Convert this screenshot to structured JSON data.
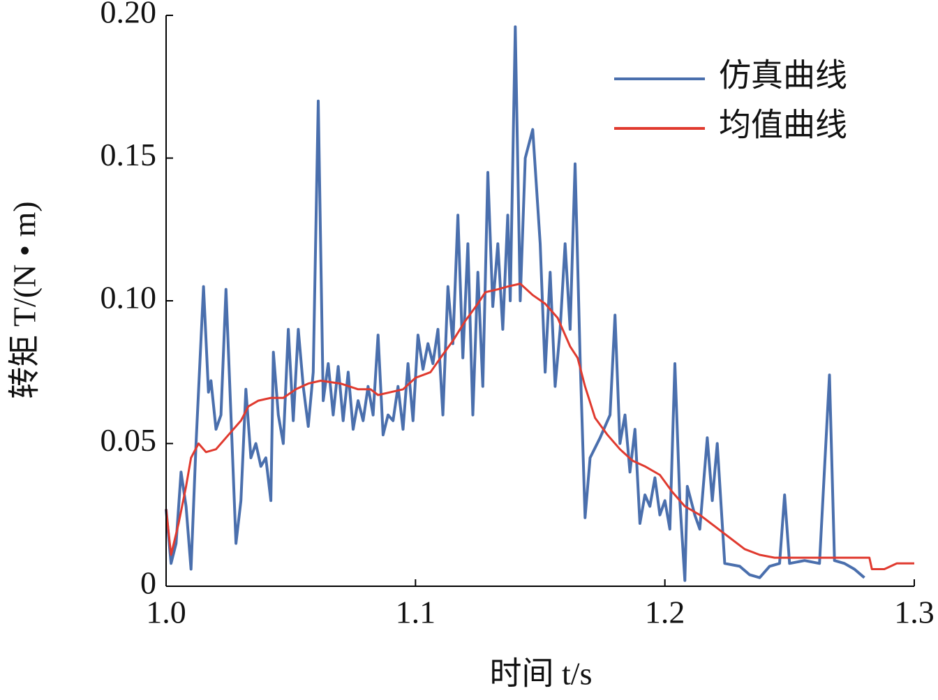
{
  "chart_data": {
    "type": "line",
    "xlabel": "时间 t/s",
    "ylabel": "转矩 T/(N • m)",
    "xlim": [
      1.0,
      1.3
    ],
    "xticks": [
      {
        "value": 1.0,
        "label": "1.0"
      },
      1.1,
      1.2,
      1.3
    ],
    "ylim": [
      0,
      0.2
    ],
    "yticks": [
      0,
      0.05,
      {
        "value": 0.1,
        "label": "0.10"
      },
      0.15,
      {
        "value": 0.2,
        "label": "0.20"
      }
    ],
    "legend": "upper right",
    "series": [
      {
        "name": "仿真曲线",
        "color": "#4a6fad",
        "x": [
          1.0,
          1.002,
          1.004,
          1.006,
          1.008,
          1.01,
          1.012,
          1.015,
          1.017,
          1.018,
          1.02,
          1.022,
          1.024,
          1.026,
          1.028,
          1.03,
          1.032,
          1.034,
          1.036,
          1.038,
          1.04,
          1.042,
          1.043,
          1.045,
          1.047,
          1.049,
          1.051,
          1.053,
          1.055,
          1.057,
          1.059,
          1.061,
          1.063,
          1.065,
          1.067,
          1.069,
          1.071,
          1.073,
          1.075,
          1.077,
          1.079,
          1.081,
          1.083,
          1.085,
          1.087,
          1.089,
          1.091,
          1.093,
          1.095,
          1.097,
          1.099,
          1.101,
          1.103,
          1.105,
          1.107,
          1.109,
          1.111,
          1.113,
          1.115,
          1.117,
          1.119,
          1.121,
          1.123,
          1.125,
          1.127,
          1.129,
          1.131,
          1.133,
          1.135,
          1.137,
          1.138,
          1.14,
          1.142,
          1.144,
          1.147,
          1.15,
          1.152,
          1.154,
          1.156,
          1.158,
          1.16,
          1.162,
          1.164,
          1.166,
          1.168,
          1.17,
          1.174,
          1.178,
          1.18,
          1.182,
          1.184,
          1.186,
          1.188,
          1.19,
          1.192,
          1.194,
          1.196,
          1.198,
          1.2,
          1.202,
          1.204,
          1.206,
          1.208,
          1.209,
          1.212,
          1.214,
          1.217,
          1.219,
          1.221,
          1.224,
          1.23,
          1.234,
          1.238,
          1.242,
          1.246,
          1.248,
          1.25,
          1.256,
          1.262,
          1.266,
          1.268,
          1.272,
          1.276,
          1.28
        ],
        "values": [
          0.027,
          0.008,
          0.015,
          0.04,
          0.028,
          0.006,
          0.05,
          0.105,
          0.068,
          0.072,
          0.055,
          0.06,
          0.104,
          0.06,
          0.015,
          0.03,
          0.069,
          0.045,
          0.05,
          0.042,
          0.045,
          0.03,
          0.082,
          0.06,
          0.05,
          0.09,
          0.058,
          0.09,
          0.07,
          0.056,
          0.075,
          0.17,
          0.065,
          0.078,
          0.06,
          0.077,
          0.058,
          0.075,
          0.055,
          0.065,
          0.058,
          0.07,
          0.06,
          0.088,
          0.053,
          0.06,
          0.058,
          0.07,
          0.055,
          0.078,
          0.058,
          0.088,
          0.076,
          0.085,
          0.078,
          0.09,
          0.06,
          0.105,
          0.085,
          0.13,
          0.08,
          0.12,
          0.06,
          0.11,
          0.07,
          0.145,
          0.098,
          0.12,
          0.09,
          0.13,
          0.1,
          0.196,
          0.1,
          0.15,
          0.16,
          0.12,
          0.075,
          0.11,
          0.07,
          0.09,
          0.12,
          0.09,
          0.148,
          0.08,
          0.024,
          0.045,
          0.052,
          0.06,
          0.095,
          0.05,
          0.06,
          0.04,
          0.055,
          0.022,
          0.032,
          0.028,
          0.038,
          0.025,
          0.03,
          0.02,
          0.078,
          0.03,
          0.002,
          0.035,
          0.025,
          0.02,
          0.052,
          0.03,
          0.05,
          0.008,
          0.007,
          0.004,
          0.003,
          0.007,
          0.008,
          0.032,
          0.008,
          0.009,
          0.008,
          0.074,
          0.009,
          0.008,
          0.006,
          0.003
        ]
      },
      {
        "name": "均值曲线",
        "color": "#e03a2f",
        "x": [
          1.0,
          1.002,
          1.005,
          1.008,
          1.01,
          1.013,
          1.016,
          1.02,
          1.025,
          1.03,
          1.033,
          1.037,
          1.042,
          1.047,
          1.052,
          1.057,
          1.062,
          1.07,
          1.077,
          1.082,
          1.085,
          1.09,
          1.095,
          1.1,
          1.106,
          1.11,
          1.115,
          1.12,
          1.125,
          1.128,
          1.133,
          1.137,
          1.142,
          1.147,
          1.152,
          1.157,
          1.162,
          1.165,
          1.168,
          1.172,
          1.177,
          1.182,
          1.187,
          1.192,
          1.198,
          1.203,
          1.208,
          1.214,
          1.22,
          1.226,
          1.232,
          1.238,
          1.244,
          1.252,
          1.26,
          1.27,
          1.282,
          1.283,
          1.288,
          1.293,
          1.3
        ],
        "values": [
          0.027,
          0.011,
          0.022,
          0.035,
          0.045,
          0.05,
          0.047,
          0.048,
          0.053,
          0.058,
          0.063,
          0.065,
          0.066,
          0.066,
          0.069,
          0.071,
          0.072,
          0.071,
          0.069,
          0.069,
          0.067,
          0.068,
          0.069,
          0.073,
          0.075,
          0.08,
          0.086,
          0.093,
          0.099,
          0.103,
          0.104,
          0.105,
          0.106,
          0.102,
          0.099,
          0.094,
          0.084,
          0.08,
          0.07,
          0.059,
          0.053,
          0.048,
          0.044,
          0.042,
          0.039,
          0.033,
          0.028,
          0.025,
          0.021,
          0.017,
          0.013,
          0.011,
          0.01,
          0.01,
          0.01,
          0.01,
          0.01,
          0.006,
          0.006,
          0.008,
          0.008
        ]
      }
    ]
  }
}
